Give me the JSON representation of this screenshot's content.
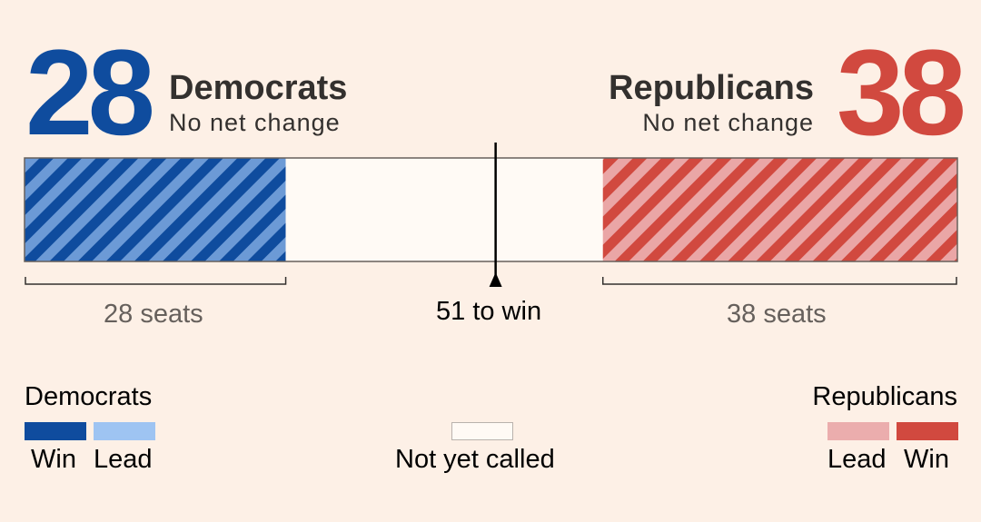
{
  "parties": {
    "dem": {
      "count": "28",
      "name": "Democrats",
      "change": "No net change",
      "seats_label": "28 seats",
      "color_win": "#0f4c9e",
      "color_lead": "#9ec4f2"
    },
    "rep": {
      "count": "38",
      "name": "Republicans",
      "change": "No net change",
      "seats_label": "38 seats",
      "color_win": "#d1493f",
      "color_lead": "#ebadad"
    }
  },
  "threshold_label": "51 to win",
  "legend": {
    "dem_title": "Democrats",
    "rep_title": "Republicans",
    "win": "Win",
    "lead": "Lead",
    "not_called": "Not yet called"
  },
  "chart_data": {
    "type": "bar",
    "orientation": "horizontal-stacked",
    "total_seats": 100,
    "threshold": 51,
    "segments": [
      {
        "party": "Democrats",
        "status": "Win",
        "value": 28
      },
      {
        "party": "Not yet called",
        "status": "Not yet called",
        "value": 34
      },
      {
        "party": "Republicans",
        "status": "Win",
        "value": 38
      }
    ]
  }
}
